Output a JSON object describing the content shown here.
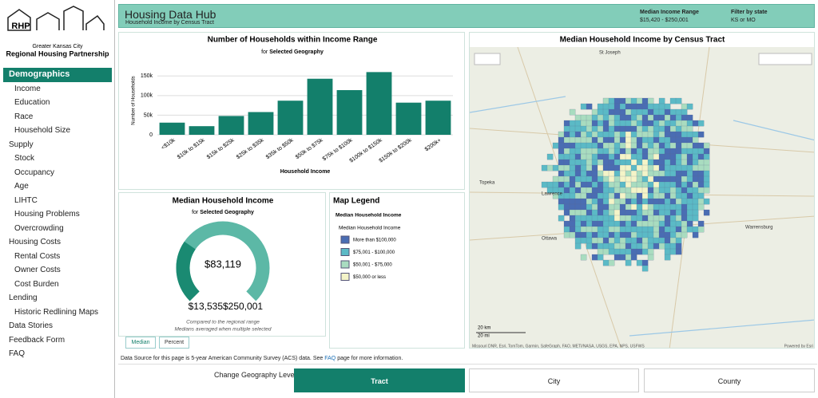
{
  "sidebar": {
    "logo": "RHP",
    "org_line1": "Greater Kansas City",
    "org_line2": "Regional Housing Partnership",
    "sections": [
      {
        "label": "Demographics",
        "items": [
          "Income",
          "Education",
          "Race",
          "Household Size"
        ]
      },
      {
        "label": "Supply",
        "items": [
          "Stock",
          "Occupancy",
          "Age",
          "LIHTC",
          "Housing Problems",
          "Overcrowding"
        ]
      },
      {
        "label": "Housing Costs",
        "items": [
          "Rental Costs",
          "Owner Costs",
          "Cost Burden"
        ]
      },
      {
        "label": "Lending",
        "items": [
          "Historic Redlining Maps"
        ]
      },
      {
        "label": "Data Stories"
      },
      {
        "label": "Feedback Form"
      },
      {
        "label": "FAQ"
      }
    ]
  },
  "header": {
    "title": "Housing Data Hub",
    "subtitle": "Household Income by Census Tract",
    "range_label": "Median Income Range",
    "range_value": "$15,420 - $250,001",
    "filter_label": "Filter by state",
    "filter_value": "KS or MO"
  },
  "chart_data": [
    {
      "type": "bar",
      "title": "Number of Households within Income Range",
      "subtitle_prefix": "for",
      "subtitle": "Selected Geography",
      "x_label": "Household Income",
      "y_label": "Number of Households",
      "categories": [
        "<$10k",
        "$10k to $15k",
        "$15k to $25k",
        "$25k to $35k",
        "$35k to $50k",
        "$50k to $75k",
        "$75k to $100k",
        "$100k to $150k",
        "$150k to $200k",
        "$200k+"
      ],
      "values": [
        31000,
        22000,
        48000,
        58000,
        87000,
        143000,
        114000,
        160000,
        82000,
        87000
      ],
      "color": "#137f6b",
      "ylim": [
        0,
        175000
      ],
      "yticks": [
        0,
        {
          "value": 50000,
          "label": "50k"
        },
        {
          "value": 100000,
          "label": "100k"
        },
        {
          "value": 150000,
          "label": "150k"
        }
      ],
      "grid": true
    },
    {
      "type": "gauge",
      "title": "Median Household Income",
      "subtitle_prefix": "for",
      "subtitle": "Selected Geography",
      "value": 83119,
      "value_label": "$83,119",
      "range": [
        13535,
        250001
      ],
      "range_labels": [
        "$13,535",
        "$250,001"
      ],
      "colors": [
        "#1a8a72",
        "#5cb8a6"
      ],
      "notes": [
        "Compared to the regional range",
        "Medians averaged when multiple selected"
      ],
      "tabs": [
        "Median",
        "Percent"
      ]
    }
  ],
  "map": {
    "title": "Median Household Income by Census Tract",
    "places": [
      "St Joseph",
      "Topeka",
      "Lawrence",
      "Ottawa",
      "Warrensburg"
    ],
    "scale": [
      "20 km",
      "20 mi"
    ],
    "attribution": "Missouri DNR, Esri, TomTom, Garmin, SafeGraph, FAO, METI/NASA, USGS, EPA, NPS, USFWS",
    "powered": "Powered by Esri"
  },
  "map_legend": {
    "title": "Map Legend",
    "layer": "Median Household Income",
    "field": "Median Household Income",
    "items": [
      {
        "label": "More than $100,000",
        "color": "#4a6db3"
      },
      {
        "label": "$75,001 - $100,000",
        "color": "#5bbac6"
      },
      {
        "label": "$50,001 - $75,000",
        "color": "#a9dcc0"
      },
      {
        "label": "$50,000 or less",
        "color": "#f4f4c8"
      }
    ]
  },
  "footer": {
    "source_pre": "Data Source for this page is 5-year American Community Survey (ACS) data. See ",
    "source_link": "FAQ",
    "source_post": " page for more information.",
    "geo_label": "Change Geography Level:",
    "geo_buttons": [
      "Tract",
      "City",
      "County"
    ]
  }
}
